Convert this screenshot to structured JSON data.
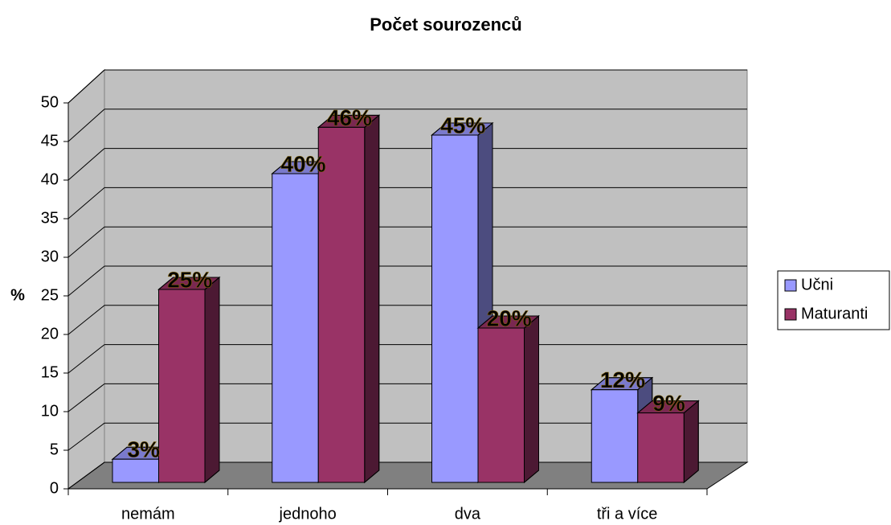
{
  "chart_data": {
    "type": "bar3d",
    "title": "Počet sourozenců",
    "y_label": "%",
    "categories": [
      "nemám",
      "jednoho",
      "dva",
      "tři a více"
    ],
    "series": [
      {
        "name": "Učni",
        "color": "#9999ff",
        "values": [
          3,
          40,
          45,
          12
        ],
        "value_labels": [
          "3%",
          "40%",
          "45%",
          "12%"
        ]
      },
      {
        "name": "Maturanti",
        "color": "#993366",
        "values": [
          25,
          46,
          20,
          9
        ],
        "value_labels": [
          "25%",
          "46%",
          "20%",
          "9%"
        ]
      }
    ],
    "ylim": [
      0,
      50
    ],
    "yticks": [
      0,
      5,
      10,
      15,
      20,
      25,
      30,
      35,
      40,
      45,
      50
    ],
    "grid": true,
    "legend": "right"
  }
}
